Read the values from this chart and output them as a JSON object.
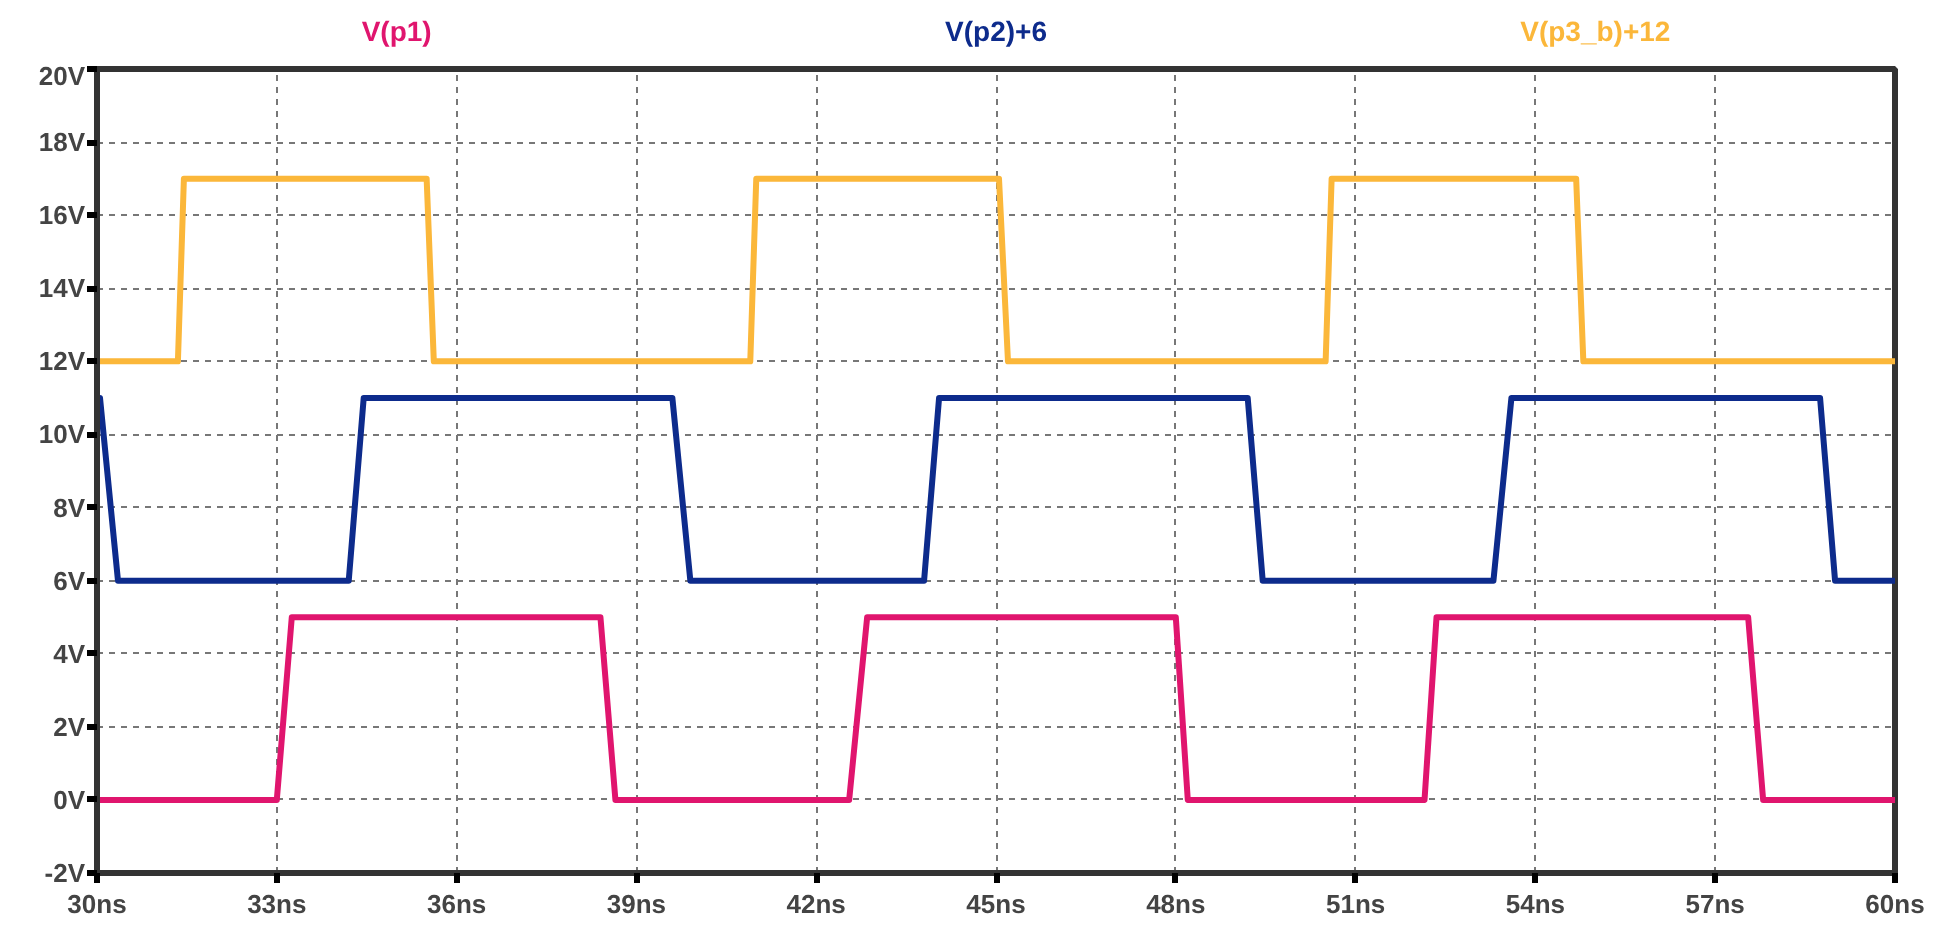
{
  "chart_data": {
    "type": "line",
    "xlim": [
      30,
      60
    ],
    "ylim": [
      -2,
      20
    ],
    "xticks": [
      {
        "value": 30,
        "label": "30ns"
      },
      {
        "value": 33,
        "label": "33ns"
      },
      {
        "value": 36,
        "label": "36ns"
      },
      {
        "value": 39,
        "label": "39ns"
      },
      {
        "value": 42,
        "label": "42ns"
      },
      {
        "value": 45,
        "label": "45ns"
      },
      {
        "value": 48,
        "label": "48ns"
      },
      {
        "value": 51,
        "label": "51ns"
      },
      {
        "value": 54,
        "label": "54ns"
      },
      {
        "value": 57,
        "label": "57ns"
      },
      {
        "value": 60,
        "label": "60ns"
      }
    ],
    "yticks": [
      {
        "value": -2,
        "label": "-2V"
      },
      {
        "value": 0,
        "label": "0V"
      },
      {
        "value": 2,
        "label": "2V"
      },
      {
        "value": 4,
        "label": "4V"
      },
      {
        "value": 6,
        "label": "6V"
      },
      {
        "value": 8,
        "label": "8V"
      },
      {
        "value": 10,
        "label": "10V"
      },
      {
        "value": 12,
        "label": "12V"
      },
      {
        "value": 14,
        "label": "14V"
      },
      {
        "value": 16,
        "label": "16V"
      },
      {
        "value": 18,
        "label": "18V"
      },
      {
        "value": 20,
        "label": "20V"
      }
    ],
    "grid": true,
    "line_style": "solid",
    "marker": "none",
    "series": [
      {
        "name": "V(p1)",
        "color": "#e0156e",
        "x": [
          30,
          33.0,
          33.25,
          38.4,
          38.65,
          42.55,
          42.85,
          48.0,
          48.2,
          52.15,
          52.35,
          57.55,
          57.8,
          60
        ],
        "values": [
          0,
          0,
          5,
          5,
          0,
          0,
          5,
          5,
          0,
          0,
          5,
          5,
          0,
          0
        ]
      },
      {
        "name": "V(p2)+6",
        "color": "#0d2b8c",
        "x": [
          30,
          30.05,
          30.35,
          34.2,
          34.45,
          39.6,
          39.9,
          43.8,
          44.05,
          49.2,
          49.45,
          53.3,
          53.6,
          58.75,
          59.0,
          60
        ],
        "values": [
          11,
          11,
          6,
          6,
          11,
          11,
          6,
          6,
          11,
          11,
          6,
          6,
          11,
          11,
          6,
          6
        ]
      },
      {
        "name": "V(p3_b)+12",
        "color": "#fbb73a",
        "x": [
          30,
          31.35,
          31.45,
          35.5,
          35.62,
          40.9,
          41.0,
          45.05,
          45.2,
          50.5,
          50.6,
          54.68,
          54.8,
          60
        ],
        "values": [
          12,
          12,
          17,
          17,
          12,
          12,
          17,
          17,
          12,
          12,
          17,
          17,
          12,
          12
        ]
      }
    ]
  }
}
